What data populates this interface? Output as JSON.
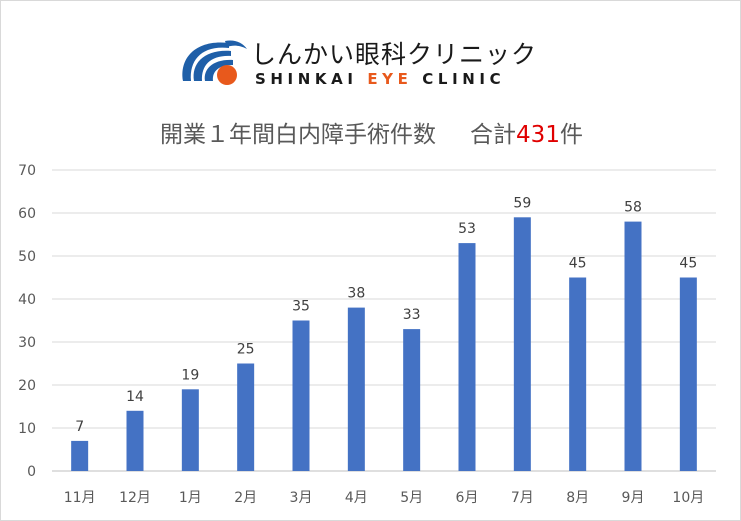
{
  "logo": {
    "name_jp": "しんかい眼科クリニック",
    "name_en_prefix": "SHINKAI ",
    "name_en_accent": "EYE",
    "name_en_suffix": " CLINIC",
    "colors": {
      "blue": "#1f5fa8",
      "orange": "#e8591c"
    }
  },
  "title": {
    "main": "開業１年間白内障手術件数",
    "total_label": "合計",
    "total_value": "431",
    "total_suffix": "件",
    "total_color": "#e00000"
  },
  "chart_data": {
    "type": "bar",
    "title": "開業１年間白内障手術件数　合計431件",
    "categories": [
      "11月",
      "12月",
      "1月",
      "2月",
      "3月",
      "4月",
      "5月",
      "6月",
      "7月",
      "8月",
      "9月",
      "10月"
    ],
    "values": [
      7,
      14,
      19,
      25,
      35,
      38,
      33,
      53,
      59,
      45,
      58,
      45
    ],
    "ylim": [
      0,
      70
    ],
    "yticks": [
      0,
      10,
      20,
      30,
      40,
      50,
      60,
      70
    ],
    "grid": true,
    "data_labels": true,
    "bar_color": "#4472c4",
    "xlabel": "",
    "ylabel": ""
  }
}
